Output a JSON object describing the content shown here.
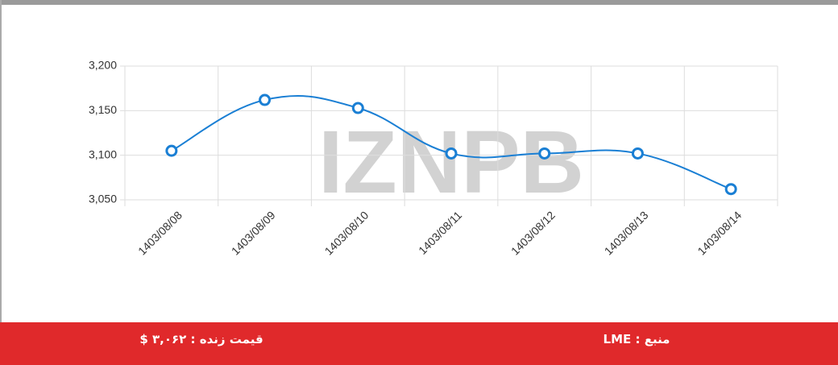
{
  "chart_data": {
    "type": "line",
    "watermark": "IZNPB",
    "categories": [
      "1403/08/08",
      "1403/08/09",
      "1403/08/10",
      "1403/08/11",
      "1403/08/12",
      "1403/08/13",
      "1403/08/14"
    ],
    "series": [
      {
        "color": "#1a7fd4",
        "values": [
          3105,
          3162,
          3153,
          3102,
          3102,
          3102,
          3062
        ]
      }
    ],
    "ylim": [
      3050,
      3200
    ],
    "yticks": [
      {
        "value": 3050,
        "label": "3,050"
      },
      {
        "value": 3100,
        "label": "3,100"
      },
      {
        "value": 3150,
        "label": "3,150"
      },
      {
        "value": 3200,
        "label": "3,200"
      }
    ],
    "grid": true
  },
  "footer": {
    "live_price": "قیمت زنده : ۳,۰۶۲ $",
    "source": "منبع : LME"
  }
}
